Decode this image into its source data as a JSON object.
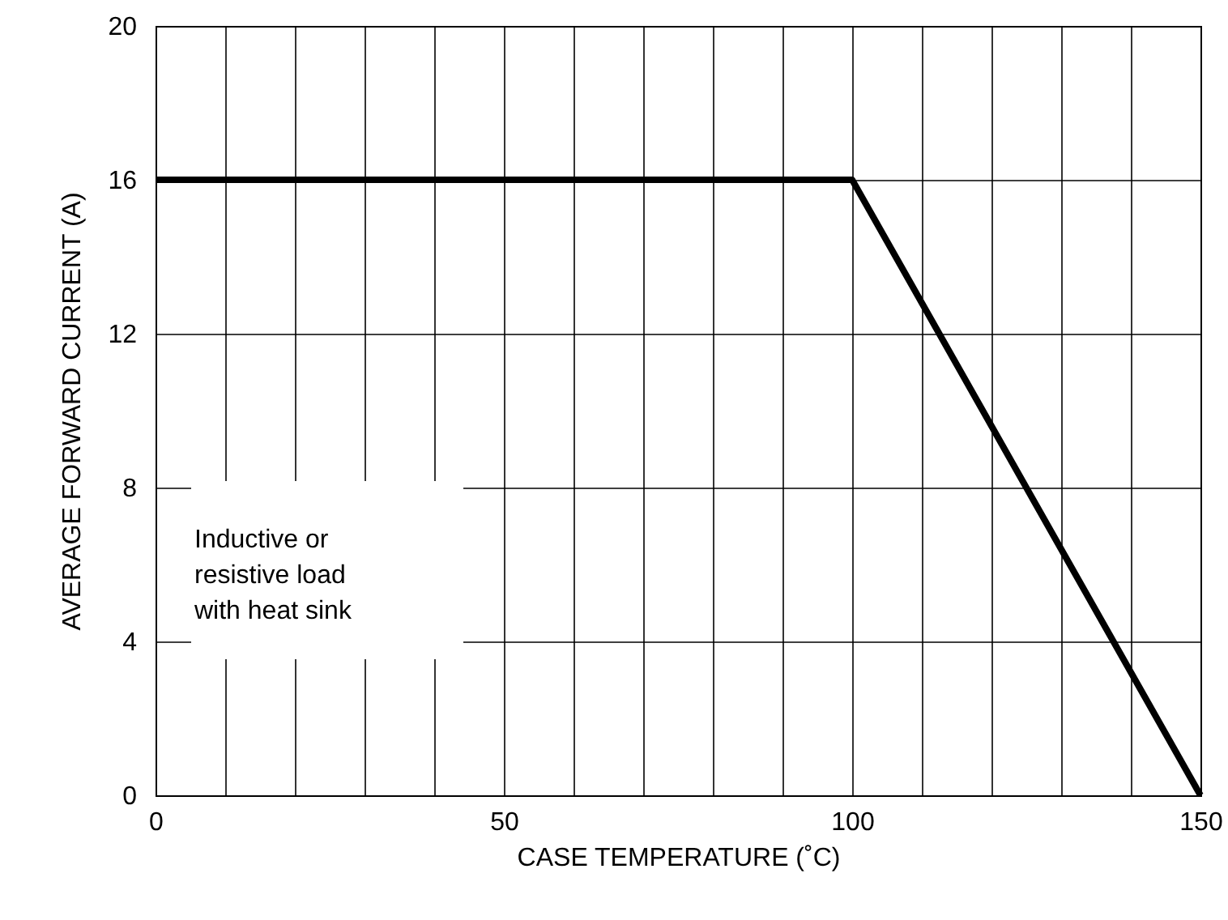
{
  "chart_data": {
    "type": "line",
    "xlabel": "CASE TEMPERATURE (˚C)",
    "ylabel": "AVERAGE FORWARD CURRENT (A)",
    "x": [
      0,
      100,
      150
    ],
    "series": [
      {
        "color": "#000000",
        "values": [
          16,
          16,
          0
        ]
      }
    ],
    "xlim": [
      0,
      150
    ],
    "xticks": [
      0,
      {
        "value": 10,
        "label": null
      },
      {
        "value": 20,
        "label": null
      },
      {
        "value": 30,
        "label": null
      },
      {
        "value": 40,
        "label": null
      },
      50,
      {
        "value": 60,
        "label": null
      },
      {
        "value": 70,
        "label": null
      },
      {
        "value": 80,
        "label": null
      },
      {
        "value": 90,
        "label": null
      },
      100,
      {
        "value": 110,
        "label": null
      },
      {
        "value": 120,
        "label": null
      },
      {
        "value": 130,
        "label": null
      },
      {
        "value": 140,
        "label": null
      },
      150
    ],
    "ylim": [
      0,
      20
    ],
    "yticks": [
      0,
      4,
      8,
      12,
      16,
      20
    ],
    "grid": true,
    "marker": "none",
    "line_style": "solid",
    "annotations": [
      "Inductive or\nresistive load\nwith heat sink"
    ]
  }
}
